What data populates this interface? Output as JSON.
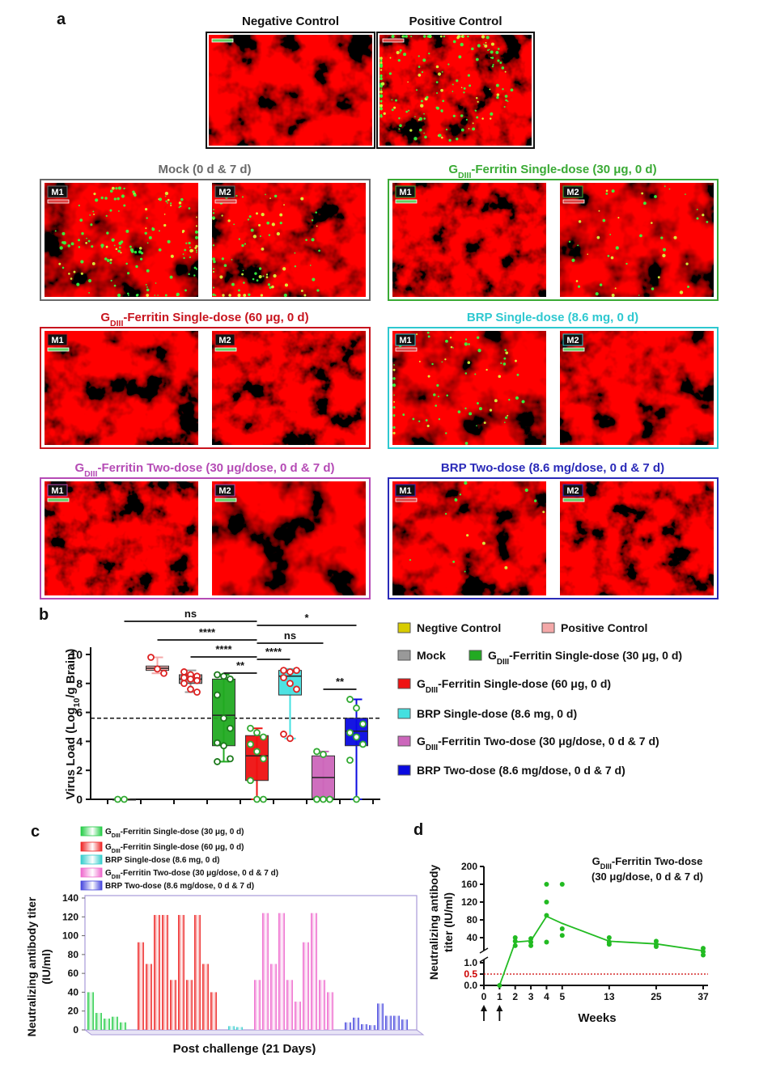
{
  "panel_a": {
    "label": "a",
    "top": [
      {
        "title": "Negative Control"
      },
      {
        "title": "Positive Control"
      }
    ],
    "groups": [
      {
        "title": "Mock (0 d & 7 d)",
        "color": "#6a6a6a",
        "tiles": [
          "M1",
          "M2"
        ]
      },
      {
        "title": {
          "main": "G",
          "sub": "DIII",
          "rest": "-Ferritin Single-dose (30 μg, 0 d)"
        },
        "color": "#3aaa35",
        "tiles": [
          "M1",
          "M2"
        ]
      },
      {
        "title": {
          "main": "G",
          "sub": "DIII",
          "rest": "-Ferritin Single-dose (60 μg, 0 d)"
        },
        "color": "#c8141e",
        "tiles": [
          "M1",
          "M2"
        ]
      },
      {
        "title": "BRP Single-dose (8.6 mg, 0 d)",
        "color": "#2ec8d0",
        "tiles": [
          "M1",
          "M2"
        ]
      },
      {
        "title": {
          "main": "G",
          "sub": "DIII",
          "rest": "-Ferritin Two-dose (30 μg/dose, 0 d & 7 d)"
        },
        "color": "#b54bb5",
        "tiles": [
          "M1",
          "M2"
        ]
      },
      {
        "title": "BRP Two-dose (8.6 mg/dose, 0 d & 7 d)",
        "color": "#2a2ab8",
        "tiles": [
          "M1",
          "M2"
        ]
      }
    ]
  },
  "chart_data": [
    {
      "type": "box",
      "panel_label": "b",
      "y_label": {
        "main": "Virus Load (Log",
        "sub": "10",
        "rest": "/g Brain)"
      },
      "ylim": [
        0,
        10.5
      ],
      "yticks": [
        0,
        2,
        4,
        6,
        8,
        10
      ],
      "threshold": 5.6,
      "series": [
        {
          "name": "Negtive Control",
          "color": "#d8cc00",
          "point_color": "#33aa33",
          "min": 0,
          "q1": 0,
          "median": 0,
          "q3": 0,
          "max": 0,
          "points": [
            0,
            0
          ]
        },
        {
          "name": "Positive Control",
          "color": "#f4a8a8",
          "point_color": "#dd2222",
          "min": 8.7,
          "q1": 8.9,
          "median": 9.05,
          "q3": 9.2,
          "max": 9.8,
          "points": [
            9.8,
            9.0,
            8.7
          ]
        },
        {
          "name": "Mock",
          "color": "#999999",
          "point_color": "#dd2222",
          "min": 7.4,
          "q1": 8.0,
          "median": 8.3,
          "q3": 8.6,
          "max": 8.9,
          "points": [
            8.8,
            8.6,
            8.5,
            8.4,
            8.3,
            8.2,
            8.0,
            7.6,
            7.4
          ]
        },
        {
          "name": {
            "main": "G",
            "sub": "DIII",
            "rest": "-Ferritin Single-dose (30 μg, 0 d)"
          },
          "color": "#22aa22",
          "point_color": "#1b7a1b",
          "min": 2.6,
          "q1": 3.7,
          "median": 5.8,
          "q3": 8.3,
          "max": 8.6,
          "points": [
            8.6,
            8.5,
            8.3,
            7.2,
            5.6,
            4.9,
            3.9,
            3.7,
            2.8,
            2.6
          ]
        },
        {
          "name": {
            "main": "G",
            "sub": "DIII",
            "rest": "-Ferritin Single-dose (60 μg, 0 d)"
          },
          "color": "#ee1111",
          "point_color": "#33aa33",
          "min": 0,
          "q1": 1.3,
          "median": 3.0,
          "q3": 4.4,
          "max": 4.9,
          "points": [
            4.9,
            4.6,
            4.3,
            3.8,
            3.3,
            2.8,
            1.3,
            0,
            0
          ]
        },
        {
          "name": "BRP Single-dose (8.6 mg, 0 d)",
          "color": "#44e0e0",
          "point_color": "#dd2222",
          "min": 4.2,
          "q1": 7.2,
          "median": 8.5,
          "q3": 8.9,
          "max": 9.0,
          "points": [
            8.9,
            8.8,
            8.9,
            8.4,
            8.0,
            7.6,
            4.5,
            4.2
          ]
        },
        {
          "name": {
            "main": "G",
            "sub": "DIII",
            "rest": "-Ferritin Two-dose (30 μg/dose, 0 d & 7 d)"
          },
          "color": "#cc66bb",
          "point_color": "#33aa33",
          "min": 0,
          "q1": 0.1,
          "median": 1.5,
          "q3": 3.0,
          "max": 3.3,
          "points": [
            3.3,
            3.1,
            0,
            0,
            0,
            0,
            0
          ]
        },
        {
          "name": "BRP Two-dose (8.6 mg/dose, 0 d & 7 d)",
          "color": "#0a0ae0",
          "point_color": "#33aa33",
          "min": 0,
          "q1": 3.7,
          "median": 4.7,
          "q3": 5.6,
          "max": 6.9,
          "points": [
            6.9,
            6.3,
            5.2,
            4.6,
            4.3,
            3.8,
            2.7,
            0
          ]
        }
      ],
      "brackets": [
        {
          "label": "ns",
          "groups": [
            0,
            4
          ]
        },
        {
          "label": "****",
          "groups": [
            1,
            4
          ]
        },
        {
          "label": "****",
          "groups": [
            2,
            4
          ]
        },
        {
          "label": "**",
          "groups": [
            3,
            4
          ]
        },
        {
          "label": "*",
          "groups": [
            4,
            7
          ]
        },
        {
          "label": "ns",
          "groups": [
            4,
            6
          ]
        },
        {
          "label": "****",
          "groups": [
            4,
            5
          ]
        },
        {
          "label": "**",
          "groups": [
            6,
            7
          ]
        }
      ]
    },
    {
      "type": "bar",
      "panel_label": "c",
      "y_label": [
        "Neutralizing antibody titer",
        "(IU/ml)"
      ],
      "x_label": "Post challenge (21 Days)",
      "ylim": [
        0,
        140
      ],
      "yticks": [
        0,
        20,
        40,
        60,
        80,
        100,
        120,
        140
      ],
      "series": [
        {
          "name": {
            "main": "G",
            "sub": "DIII",
            "rest": "-Ferritin Single-dose (30 μg, 0 d)"
          },
          "color": "#22cc44",
          "values": [
            40,
            18,
            12,
            14,
            8
          ]
        },
        {
          "name": {
            "main": "G",
            "sub": "DIII",
            "rest": "-Ferritin Single-dose (60 μg, 0 d)"
          },
          "color": "#ee2222",
          "values": [
            93,
            70,
            122,
            122,
            53,
            122,
            53,
            122,
            70,
            40
          ]
        },
        {
          "name": "BRP Single-dose (8.6 mg, 0 d)",
          "color": "#33cccc",
          "values": [
            4,
            3
          ]
        },
        {
          "name": {
            "main": "G",
            "sub": "DIII",
            "rest": "-Ferritin Two-dose (30 μg/dose, 0 d & 7 d)"
          },
          "color": "#ee66cc",
          "values": [
            53,
            124,
            70,
            124,
            53,
            30,
            93,
            124,
            53,
            40
          ]
        },
        {
          "name": "BRP Two-dose (8.6 mg/dose, 0 d & 7 d)",
          "color": "#4444dd",
          "values": [
            8,
            13,
            6,
            5,
            28,
            15,
            15,
            11
          ]
        }
      ]
    },
    {
      "type": "line",
      "panel_label": "d",
      "annotation": {
        "title": {
          "main": "G",
          "sub": "DIII",
          "rest": "-Ferritin Two-dose"
        },
        "subtitle": "(30 μg/dose, 0 d & 7 d)"
      },
      "x_label": "Weeks",
      "y_label": [
        "Neutralizing antibody",
        "titer (IU/ml)"
      ],
      "xticks": [
        0,
        1,
        2,
        3,
        4,
        5,
        13,
        25,
        37
      ],
      "ylim": [
        0,
        200
      ],
      "y_break": [
        1,
        20
      ],
      "yticks": [
        {
          "value": 0,
          "label": "0.0"
        },
        {
          "value": 0.5,
          "label": "0.5"
        },
        {
          "value": 1,
          "label": "1.0"
        },
        40,
        80,
        120,
        160,
        200
      ],
      "threshold": 0.5,
      "threshold_color": "#cc0000",
      "dose_weeks": [
        0,
        1
      ],
      "series": [
        {
          "color": "#22bb22",
          "x": [
            1,
            2,
            3,
            4,
            5,
            13,
            25,
            37
          ],
          "values": [
            0,
            30,
            33,
            88,
            72,
            32,
            26,
            15
          ]
        }
      ],
      "points": {
        "x": [
          1,
          2,
          2,
          2,
          3,
          3,
          3,
          4,
          4,
          4,
          4,
          5,
          5,
          5,
          13,
          13,
          13,
          25,
          25,
          25,
          37,
          37,
          37
        ],
        "y": [
          0,
          40,
          32,
          22,
          38,
          30,
          22,
          160,
          120,
          90,
          30,
          160,
          60,
          45,
          40,
          30,
          25,
          32,
          25,
          20,
          18,
          14,
          10
        ]
      }
    }
  ]
}
